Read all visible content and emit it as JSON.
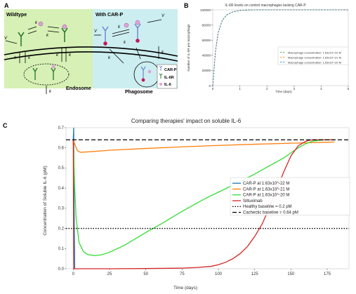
{
  "panels": {
    "a_letter": "A",
    "b_letter": "B",
    "c_letter": "C"
  },
  "diagram": {
    "wildtype_label": "Wildtype",
    "carp_label": "With CAR-P",
    "endosome_label": "Endosome",
    "phagosome_label": "Phagosome",
    "legend": [
      "CAR-P",
      "IL-6R",
      "IL-6"
    ],
    "rate_labels": {
      "vr": "V",
      "kon_r": "k",
      "koff_r": "k",
      "kin_r": "k",
      "kout_r": "k",
      "kin_c": "k",
      "krec": "k",
      "kdeg": "k",
      "vr_car": "V",
      "v_il6": "V",
      "kon_car": "k",
      "koff_car": "k",
      "kin_car": "k",
      "kp": "k"
    },
    "colors": {
      "wildtype_bg": "#d6f0b5",
      "carp_bg": "#cdeef0",
      "carp_receptor": "#7a8fd0",
      "il6r": "#2e7d32",
      "il6": "#e1a3d9"
    }
  },
  "chart_data": [
    {
      "type": "line",
      "title": "IL-6R levels on control macrophages lacking CAR-P",
      "xlabel": "Time (days)",
      "ylabel": "Number of IL-6R per macrophage",
      "xlim": [
        0,
        5
      ],
      "ylim": [
        0,
        100000
      ],
      "x_ticks": [
        "0",
        "1",
        "2",
        "3",
        "4",
        "5"
      ],
      "y_ticks": [
        "0",
        "20000",
        "40000",
        "60000",
        "80000",
        "100000"
      ],
      "grid": false,
      "legend_position": "center-right",
      "series": [
        {
          "name": "Macrophage concentration: 1.63x10^-22 M",
          "color": "#2ca02c",
          "style": "dashed",
          "x": [
            0,
            0.1,
            0.2,
            0.35,
            0.5,
            0.75,
            1.0,
            1.25,
            1.5,
            2,
            3,
            4,
            5
          ],
          "values": [
            0,
            45000,
            70000,
            86000,
            93000,
            97500,
            99200,
            99700,
            99900,
            100000,
            100000,
            100000,
            100000
          ]
        },
        {
          "name": "Macrophage concentration: 1.63x10^-21 M",
          "color": "#ff7f0e",
          "style": "dashed",
          "x": [
            0,
            0.1,
            0.2,
            0.35,
            0.5,
            0.75,
            1.0,
            1.25,
            1.5,
            2,
            3,
            4,
            5
          ],
          "values": [
            0,
            45000,
            70000,
            86000,
            93000,
            97500,
            99200,
            99700,
            99900,
            100000,
            100000,
            100000,
            100000
          ]
        },
        {
          "name": "Macrophage concentration: 1.63x10^-20 M",
          "color": "#1f77b4",
          "style": "dashed",
          "x": [
            0,
            0.1,
            0.2,
            0.35,
            0.5,
            0.75,
            1.0,
            1.25,
            1.5,
            2,
            3,
            4,
            5
          ],
          "values": [
            0,
            45000,
            70000,
            86000,
            93000,
            97500,
            99200,
            99700,
            99900,
            100000,
            100000,
            100000,
            100000
          ]
        }
      ]
    },
    {
      "type": "line",
      "title": "Comparing therapies' impact on soluble IL-6",
      "xlabel": "Time (days)",
      "ylabel": "Concentration of Soluble IL-6 (pM)",
      "xlim": [
        -5,
        190
      ],
      "ylim": [
        0,
        0.7
      ],
      "x_ticks": [
        0,
        25,
        50,
        75,
        100,
        125,
        150,
        175
      ],
      "y_ticks": [
        0.0,
        0.1,
        0.2,
        0.3,
        0.4,
        0.5,
        0.6,
        0.7
      ],
      "y_tick_labels": [
        "0.0",
        "0.1",
        "0.2",
        "0.3",
        "0.4",
        "0.5",
        "0.6",
        "0.7"
      ],
      "grid": false,
      "legend_position": "center-right",
      "series": [
        {
          "name": "CAR-P at 1.63x10^-22 M",
          "color": "#1f77b4",
          "style": "solid",
          "x": [
            0,
            0.3,
            0.6,
            1
          ],
          "values": [
            0.64,
            0.7,
            0.3,
            0.0
          ]
        },
        {
          "name": "CAR-P at 1.63x10^-21 M",
          "color": "#ff7f0e",
          "style": "solid",
          "x": [
            0,
            1,
            2,
            3,
            5,
            10,
            25,
            50,
            75,
            100,
            125,
            150,
            175,
            180
          ],
          "values": [
            0.64,
            0.62,
            0.6,
            0.585,
            0.578,
            0.58,
            0.588,
            0.597,
            0.605,
            0.612,
            0.618,
            0.623,
            0.628,
            0.629
          ]
        },
        {
          "name": "CAR-P at 1.63x10^-20 M",
          "color": "#33dd33",
          "style": "solid",
          "x": [
            0,
            1,
            2,
            4,
            7,
            10,
            15,
            20,
            25,
            35,
            50,
            60,
            75,
            90,
            100,
            110,
            125,
            135,
            145,
            150,
            155,
            160,
            165,
            170,
            175,
            180
          ],
          "values": [
            0.64,
            0.4,
            0.25,
            0.13,
            0.085,
            0.07,
            0.065,
            0.07,
            0.082,
            0.115,
            0.18,
            0.22,
            0.285,
            0.345,
            0.38,
            0.415,
            0.47,
            0.51,
            0.55,
            0.575,
            0.6,
            0.62,
            0.633,
            0.638,
            0.64,
            0.64
          ]
        },
        {
          "name": "Siltuximab",
          "color": "#d62728",
          "style": "solid",
          "x": [
            0,
            0.3,
            1,
            25,
            50,
            75,
            85,
            95,
            100,
            105,
            110,
            115,
            120,
            125,
            130,
            135,
            140,
            145,
            150,
            155,
            160,
            163,
            166,
            170,
            175,
            180
          ],
          "values": [
            0.64,
            0.0,
            0.0,
            0.0,
            0.001,
            0.003,
            0.006,
            0.012,
            0.02,
            0.032,
            0.05,
            0.075,
            0.11,
            0.16,
            0.22,
            0.3,
            0.39,
            0.48,
            0.56,
            0.61,
            0.632,
            0.638,
            0.64,
            0.64,
            0.64,
            0.64
          ]
        },
        {
          "name": "Healthy baseline = 0.2 pM",
          "color": "#000000",
          "style": "dotted",
          "x": [
            -5,
            190
          ],
          "values": [
            0.2,
            0.2
          ]
        },
        {
          "name": "Cachectic baseline = 0.64 pM",
          "color": "#000000",
          "style": "dashed",
          "x": [
            -5,
            190
          ],
          "values": [
            0.64,
            0.64
          ]
        }
      ]
    }
  ]
}
